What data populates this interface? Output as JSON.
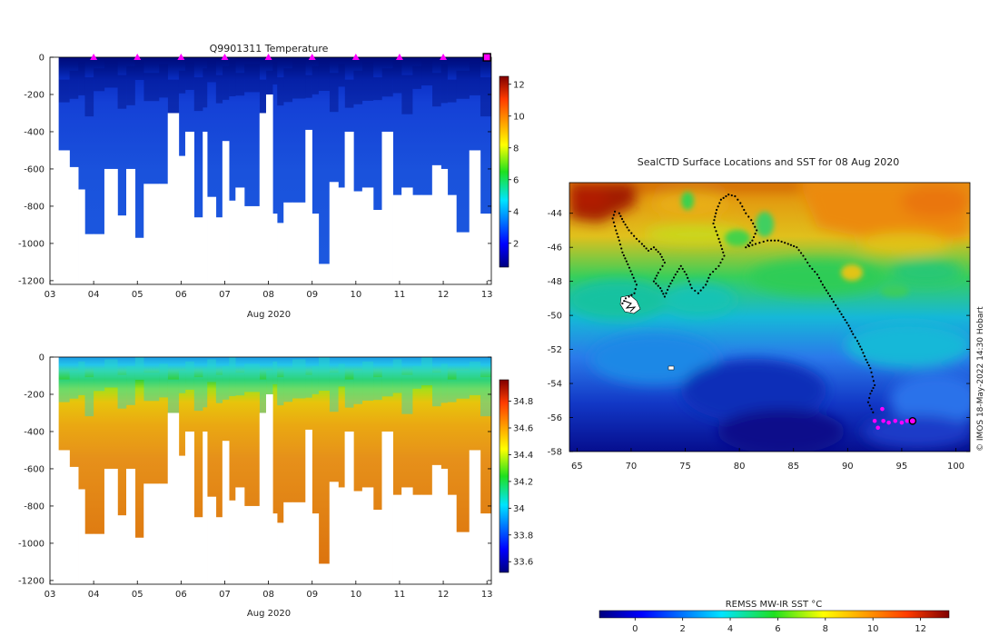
{
  "chart_data": [
    {
      "type": "heatmap",
      "title": "Q9901311  Temperature",
      "xlabel": "Aug 2020",
      "ylabel": "",
      "x_ticks": [
        "03",
        "04",
        "05",
        "06",
        "07",
        "08",
        "09",
        "10",
        "11",
        "12",
        "13"
      ],
      "x_range": [
        3,
        13.1
      ],
      "y_ticks": [
        "0",
        "-200",
        "-400",
        "-600",
        "-800",
        "-1000",
        "-1200"
      ],
      "y_range": [
        -1220,
        0
      ],
      "markers_x": [
        4,
        5,
        6,
        7,
        8,
        9,
        10,
        11,
        12
      ],
      "marker_color": "#ff00ff",
      "current_marker_x": 13,
      "colorbar_ticks": [
        "2",
        "4",
        "6",
        "8",
        "10",
        "12"
      ],
      "colorbar_range": [
        0.5,
        12.5
      ],
      "colorbar": "jet",
      "profiles_depth_m": [
        {
          "x": 3.2,
          "depth": -500
        },
        {
          "x": 3.45,
          "depth": -590
        },
        {
          "x": 3.65,
          "depth": -710
        },
        {
          "x": 3.8,
          "depth": -950
        },
        {
          "x": 4.0,
          "depth": -950
        },
        {
          "x": 4.25,
          "depth": -600
        },
        {
          "x": 4.55,
          "depth": -850
        },
        {
          "x": 4.75,
          "depth": -600
        },
        {
          "x": 4.95,
          "depth": -970
        },
        {
          "x": 5.15,
          "depth": -680
        },
        {
          "x": 5.5,
          "depth": -680
        },
        {
          "x": 5.7,
          "depth": -300
        },
        {
          "x": 5.95,
          "depth": -530
        },
        {
          "x": 6.1,
          "depth": -400
        },
        {
          "x": 6.3,
          "depth": -860
        },
        {
          "x": 6.5,
          "depth": -400
        },
        {
          "x": 6.6,
          "depth": -750
        },
        {
          "x": 6.8,
          "depth": -860
        },
        {
          "x": 6.95,
          "depth": -450
        },
        {
          "x": 7.1,
          "depth": -770
        },
        {
          "x": 7.25,
          "depth": -700
        },
        {
          "x": 7.45,
          "depth": -800
        },
        {
          "x": 7.8,
          "depth": -300
        },
        {
          "x": 7.95,
          "depth": -200
        },
        {
          "x": 8.1,
          "depth": -840
        },
        {
          "x": 8.2,
          "depth": -890
        },
        {
          "x": 8.35,
          "depth": -780
        },
        {
          "x": 8.55,
          "depth": -780
        },
        {
          "x": 8.85,
          "depth": -390
        },
        {
          "x": 9.0,
          "depth": -840
        },
        {
          "x": 9.15,
          "depth": -1110
        },
        {
          "x": 9.4,
          "depth": -670
        },
        {
          "x": 9.6,
          "depth": -700
        },
        {
          "x": 9.75,
          "depth": -400
        },
        {
          "x": 9.95,
          "depth": -720
        },
        {
          "x": 10.15,
          "depth": -700
        },
        {
          "x": 10.4,
          "depth": -820
        },
        {
          "x": 10.6,
          "depth": -400
        },
        {
          "x": 10.85,
          "depth": -740
        },
        {
          "x": 11.05,
          "depth": -700
        },
        {
          "x": 11.3,
          "depth": -740
        },
        {
          "x": 11.5,
          "depth": -740
        },
        {
          "x": 11.75,
          "depth": -580
        },
        {
          "x": 11.95,
          "depth": -600
        },
        {
          "x": 12.1,
          "depth": -740
        },
        {
          "x": 12.3,
          "depth": -940
        },
        {
          "x": 12.6,
          "depth": -500
        },
        {
          "x": 12.85,
          "depth": -840
        }
      ]
    },
    {
      "type": "heatmap",
      "title": "",
      "xlabel": "Aug 2020",
      "ylabel": "",
      "x_ticks": [
        "03",
        "04",
        "05",
        "06",
        "07",
        "08",
        "09",
        "10",
        "11",
        "12",
        "13"
      ],
      "x_range": [
        3,
        13.1
      ],
      "y_ticks": [
        "0",
        "-200",
        "-400",
        "-600",
        "-800",
        "-1000",
        "-1200"
      ],
      "y_range": [
        -1220,
        0
      ],
      "colorbar_ticks": [
        "33.6",
        "33.8",
        "34",
        "34.2",
        "34.4",
        "34.6",
        "34.8"
      ],
      "colorbar_range": [
        33.52,
        34.96
      ],
      "colorbar": "jet"
    },
    {
      "type": "heatmap",
      "title": "SealCTD Surface Locations and SST for 08 Aug 2020",
      "xlabel": "",
      "ylabel": "",
      "x_ticks": [
        "65",
        "70",
        "75",
        "80",
        "85",
        "90",
        "95",
        "100"
      ],
      "x_range": [
        64.3,
        101.3
      ],
      "y_ticks": [
        "-44",
        "-46",
        "-48",
        "-50",
        "-52",
        "-54",
        "-56",
        "-58"
      ],
      "y_range": [
        -58,
        -42.2
      ],
      "colorbar_label": "REMSS MW-IR SST °C",
      "colorbar_ticks": [
        "0",
        "2",
        "4",
        "6",
        "8",
        "10",
        "12"
      ],
      "colorbar_range": [
        -1.5,
        13.2
      ],
      "colorbar": "jet",
      "track_color": "#000000",
      "recent_positions_color": "#ff00ff",
      "track_lon_lat": [
        [
          69.2,
          -49.3
        ],
        [
          69.5,
          -49.0
        ],
        [
          69.8,
          -48.9
        ],
        [
          70.3,
          -48.7
        ],
        [
          70.5,
          -48.2
        ],
        [
          70.1,
          -47.6
        ],
        [
          69.7,
          -47.0
        ],
        [
          69.2,
          -46.3
        ],
        [
          68.9,
          -45.6
        ],
        [
          68.6,
          -45.0
        ],
        [
          68.3,
          -44.3
        ],
        [
          68.5,
          -43.9
        ],
        [
          68.9,
          -44.0
        ],
        [
          69.3,
          -44.5
        ],
        [
          69.8,
          -45.0
        ],
        [
          70.5,
          -45.5
        ],
        [
          71.0,
          -45.8
        ],
        [
          71.6,
          -46.2
        ],
        [
          72.1,
          -46.0
        ],
        [
          72.7,
          -46.4
        ],
        [
          73.1,
          -46.9
        ],
        [
          72.5,
          -47.5
        ],
        [
          72.1,
          -48.0
        ],
        [
          72.7,
          -48.4
        ],
        [
          73.1,
          -48.9
        ],
        [
          73.5,
          -48.3
        ],
        [
          74.1,
          -47.6
        ],
        [
          74.6,
          -47.1
        ],
        [
          75.1,
          -47.6
        ],
        [
          75.6,
          -48.4
        ],
        [
          76.2,
          -48.7
        ],
        [
          76.9,
          -48.2
        ],
        [
          77.3,
          -47.6
        ],
        [
          78.1,
          -47.1
        ],
        [
          78.6,
          -46.5
        ],
        [
          78.1,
          -45.5
        ],
        [
          77.6,
          -44.6
        ],
        [
          77.9,
          -43.8
        ],
        [
          78.3,
          -43.2
        ],
        [
          79.0,
          -42.9
        ],
        [
          79.6,
          -43.0
        ],
        [
          80.1,
          -43.4
        ],
        [
          80.6,
          -44.0
        ],
        [
          81.1,
          -44.4
        ],
        [
          81.6,
          -45.0
        ],
        [
          81.2,
          -45.6
        ],
        [
          80.6,
          -46.0
        ],
        [
          81.5,
          -45.8
        ],
        [
          82.6,
          -45.6
        ],
        [
          83.6,
          -45.6
        ],
        [
          84.5,
          -45.8
        ],
        [
          85.3,
          -46.0
        ],
        [
          85.9,
          -46.5
        ],
        [
          86.5,
          -47.1
        ],
        [
          87.2,
          -47.6
        ],
        [
          87.7,
          -48.2
        ],
        [
          88.2,
          -48.7
        ],
        [
          88.7,
          -49.2
        ],
        [
          89.1,
          -49.6
        ],
        [
          89.6,
          -50.1
        ],
        [
          90.1,
          -50.6
        ],
        [
          90.5,
          -51.1
        ],
        [
          90.9,
          -51.5
        ],
        [
          91.3,
          -52.0
        ],
        [
          91.7,
          -52.6
        ],
        [
          92.1,
          -53.1
        ],
        [
          92.3,
          -53.6
        ],
        [
          92.5,
          -54.1
        ],
        [
          92.1,
          -54.6
        ],
        [
          91.9,
          -55.1
        ],
        [
          92.2,
          -55.5
        ],
        [
          92.5,
          -55.9
        ]
      ],
      "recent_lon_lat": [
        [
          92.5,
          -56.2
        ],
        [
          92.8,
          -56.6
        ],
        [
          93.3,
          -56.2
        ],
        [
          93.8,
          -56.3
        ],
        [
          94.4,
          -56.2
        ],
        [
          95.0,
          -56.3
        ],
        [
          95.5,
          -56.2
        ],
        [
          93.2,
          -55.5
        ]
      ],
      "current_position_lon_lat": [
        96.0,
        -56.2
      ]
    }
  ],
  "credit": "© IMOS 18-May-2022 14:30 Hobart"
}
